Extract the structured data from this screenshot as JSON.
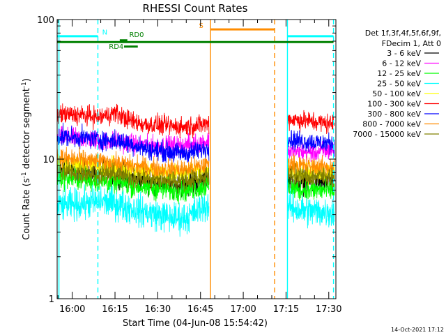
{
  "chart_data": {
    "type": "line",
    "title": "RHESSI Count Rates",
    "xlabel": "Start Time (04-Jun-08 15:54:42)",
    "ylabel_prefix": "Count Rate (s",
    "ylabel_sup1": "-1",
    "ylabel_mid": " detector segment",
    "ylabel_sup2": "-1",
    "ylabel_suffix": ")",
    "footer": "14-Oct-2021 17:12",
    "x_scale": "time",
    "x_range": [
      "15:54:42",
      "17:32:30"
    ],
    "y_scale": "log",
    "ylim": [
      1,
      100
    ],
    "x_ticks": [
      {
        "t": "16:00",
        "label": "16:00"
      },
      {
        "t": "16:15",
        "label": "16:15"
      },
      {
        "t": "16:30",
        "label": "16:30"
      },
      {
        "t": "16:45",
        "label": "16:45"
      },
      {
        "t": "17:00",
        "label": "17:00"
      },
      {
        "t": "17:15",
        "label": "17:15"
      },
      {
        "t": "17:30",
        "label": "17:30"
      }
    ],
    "y_ticks": [
      {
        "v": 1,
        "label": "1"
      },
      {
        "v": 10,
        "label": "10"
      },
      {
        "v": 100,
        "label": "100"
      }
    ],
    "legend": {
      "placement": "right",
      "header": [
        "Det 1f,3f,4f,5f,6f,9f,",
        "FDecim 1, Att 0"
      ]
    },
    "data_gaps": [
      [
        "16:48:30",
        "17:15:30"
      ]
    ],
    "series": [
      {
        "name": "3 - 6 keV",
        "color": "#000000",
        "segments": [
          {
            "x": [
              "15:54:42",
              "16:05",
              "16:10",
              "16:15",
              "16:20",
              "16:25",
              "16:30",
              "16:35",
              "16:40",
              "16:48"
            ],
            "y": [
              9.0,
              8.2,
              8.0,
              8.0,
              7.5,
              7.0,
              6.8,
              6.6,
              6.5,
              7.5
            ],
            "noise": 0.06
          },
          {
            "x": [
              "17:15:30",
              "17:20",
              "17:25",
              "17:30",
              "17:32"
            ],
            "y": [
              7.2,
              6.8,
              6.8,
              6.8,
              6.8
            ],
            "noise": 0.06
          }
        ]
      },
      {
        "name": "6 - 12 keV",
        "color": "#ff00ff",
        "segments": [
          {
            "x": [
              "15:54:42",
              "16:05",
              "16:10",
              "16:15",
              "16:20",
              "16:25",
              "16:30",
              "16:35",
              "16:40",
              "16:48"
            ],
            "y": [
              14.5,
              14.0,
              13.5,
              13.5,
              13.0,
              12.5,
              12.5,
              12.5,
              12.5,
              13.5
            ],
            "noise": 0.05
          },
          {
            "x": [
              "17:15:30",
              "17:20",
              "17:25",
              "17:30",
              "17:32"
            ],
            "y": [
              11.5,
              11.2,
              11.2,
              11.5,
              11.5
            ],
            "noise": 0.05
          }
        ]
      },
      {
        "name": "12 - 25 keV",
        "color": "#00ff00",
        "segments": [
          {
            "x": [
              "15:54:42",
              "16:05",
              "16:10",
              "16:15",
              "16:20",
              "16:25",
              "16:30",
              "16:35",
              "16:40",
              "16:48"
            ],
            "y": [
              7.5,
              7.2,
              7.0,
              6.8,
              6.6,
              6.3,
              6.2,
              6.0,
              6.0,
              6.5
            ],
            "noise": 0.06
          },
          {
            "x": [
              "17:15:30",
              "17:20",
              "17:25",
              "17:30",
              "17:32"
            ],
            "y": [
              6.2,
              6.0,
              6.0,
              6.0,
              6.0
            ],
            "noise": 0.06
          }
        ]
      },
      {
        "name": "25 - 50 keV",
        "color": "#00ffff",
        "segments": [
          {
            "x": [
              "15:54:42",
              "16:05",
              "16:10",
              "16:15",
              "16:20",
              "16:25",
              "16:30",
              "16:35",
              "16:40",
              "16:48"
            ],
            "y": [
              4.6,
              4.8,
              5.0,
              4.8,
              4.5,
              4.2,
              4.0,
              3.8,
              3.8,
              4.8
            ],
            "noise": 0.08
          },
          {
            "x": [
              "17:15:30",
              "17:20",
              "17:25",
              "17:30",
              "17:32"
            ],
            "y": [
              4.6,
              4.3,
              4.2,
              4.2,
              4.2
            ],
            "noise": 0.08
          }
        ]
      },
      {
        "name": "50 - 100 keV",
        "color": "#ffff00",
        "segments": [
          {
            "x": [
              "15:54:42",
              "16:05",
              "16:10",
              "16:15",
              "16:20",
              "16:25",
              "16:30",
              "16:35",
              "16:40",
              "16:48"
            ],
            "y": [
              9.5,
              9.0,
              8.8,
              8.6,
              8.4,
              8.2,
              8.0,
              7.9,
              7.9,
              8.5
            ],
            "noise": 0.05
          },
          {
            "x": [
              "17:15:30",
              "17:20",
              "17:25",
              "17:30",
              "17:32"
            ],
            "y": [
              8.2,
              8.0,
              8.0,
              8.0,
              8.0
            ],
            "noise": 0.05
          }
        ]
      },
      {
        "name": "100 - 300 keV",
        "color": "#ff0000",
        "segments": [
          {
            "x": [
              "15:54:42",
              "16:05",
              "16:10",
              "16:15",
              "16:20",
              "16:25",
              "16:30",
              "16:35",
              "16:40",
              "16:48"
            ],
            "y": [
              21.0,
              20.5,
              20.0,
              21.5,
              19.0,
              17.8,
              17.5,
              17.2,
              17.0,
              18.0
            ],
            "noise": 0.05
          },
          {
            "x": [
              "17:15:30",
              "17:20",
              "17:25",
              "17:30",
              "17:32"
            ],
            "y": [
              19.5,
              19.0,
              18.5,
              18.0,
              18.0
            ],
            "noise": 0.05
          }
        ]
      },
      {
        "name": "300 - 800 keV",
        "color": "#0000ff",
        "segments": [
          {
            "x": [
              "15:54:42",
              "16:05",
              "16:10",
              "16:15",
              "16:20",
              "16:25",
              "16:30",
              "16:35",
              "16:40",
              "16:48"
            ],
            "y": [
              14.5,
              14.2,
              13.8,
              13.5,
              13.0,
              12.0,
              11.5,
              11.2,
              11.0,
              12.0
            ],
            "noise": 0.05
          },
          {
            "x": [
              "17:15:30",
              "17:20",
              "17:25",
              "17:30",
              "17:32"
            ],
            "y": [
              14.0,
              13.5,
              13.2,
              13.0,
              13.0
            ],
            "noise": 0.05
          }
        ]
      },
      {
        "name": "800 - 7000 keV",
        "color": "#ff8c00",
        "segments": [
          {
            "x": [
              "15:54:42",
              "16:05",
              "16:10",
              "16:15",
              "16:20",
              "16:25",
              "16:30",
              "16:35",
              "16:40",
              "16:48"
            ],
            "y": [
              10.2,
              9.8,
              9.5,
              9.4,
              9.0,
              8.8,
              8.5,
              8.5,
              8.4,
              9.2
            ],
            "noise": 0.05
          },
          {
            "x": [
              "17:15:30",
              "17:20",
              "17:25",
              "17:30",
              "17:32"
            ],
            "y": [
              9.3,
              9.0,
              8.8,
              8.8,
              8.8
            ],
            "noise": 0.05
          }
        ]
      },
      {
        "name": "7000 - 15000 keV",
        "color": "#808000",
        "segments": [
          {
            "x": [
              "15:54:42",
              "16:05",
              "16:10",
              "16:15",
              "16:20",
              "16:25",
              "16:30",
              "16:35",
              "16:40",
              "16:48"
            ],
            "y": [
              8.2,
              8.0,
              7.8,
              7.8,
              7.5,
              7.2,
              7.0,
              7.0,
              7.0,
              7.6
            ],
            "noise": 0.05
          },
          {
            "x": [
              "17:15:30",
              "17:20",
              "17:25",
              "17:30",
              "17:32"
            ],
            "y": [
              7.8,
              7.5,
              7.5,
              7.5,
              7.5
            ],
            "noise": 0.05
          }
        ]
      }
    ],
    "vertical_lines": [
      {
        "t": "15:55:20",
        "color": "#00ffff",
        "style": "solid"
      },
      {
        "t": "16:09:00",
        "color": "#00ffff",
        "style": "dashed"
      },
      {
        "t": "16:48:30",
        "color": "#ff8c00",
        "style": "solid"
      },
      {
        "t": "17:11:00",
        "color": "#ff8c00",
        "style": "dashed"
      },
      {
        "t": "17:15:30",
        "color": "#00ffff",
        "style": "solid"
      },
      {
        "t": "17:31:40",
        "color": "#00ffff",
        "style": "dashed"
      }
    ],
    "annotations": [
      {
        "label": "N",
        "color": "#00ffff",
        "lines": [
          {
            "t0": "15:54:42",
            "t1": "16:09:00",
            "y": 76
          },
          {
            "t0": "17:15:30",
            "t1": "17:31:40",
            "y": 76
          }
        ]
      },
      {
        "label": "S",
        "color": "#ff8c00",
        "lines": [
          {
            "t0": "16:48:30",
            "t1": "17:11:00",
            "y": 85
          }
        ]
      },
      {
        "label": "RD0",
        "color": "#008000",
        "lines": [
          {
            "t0": "15:54:42",
            "t1": "17:31:40",
            "y": 69
          },
          {
            "t0": "16:16:40",
            "t1": "16:19:20",
            "y": 71
          }
        ]
      },
      {
        "label": "RD4",
        "color": "#008000",
        "lines": [
          {
            "t0": "16:18:10",
            "t1": "16:23:00",
            "y": 64
          }
        ]
      }
    ]
  }
}
